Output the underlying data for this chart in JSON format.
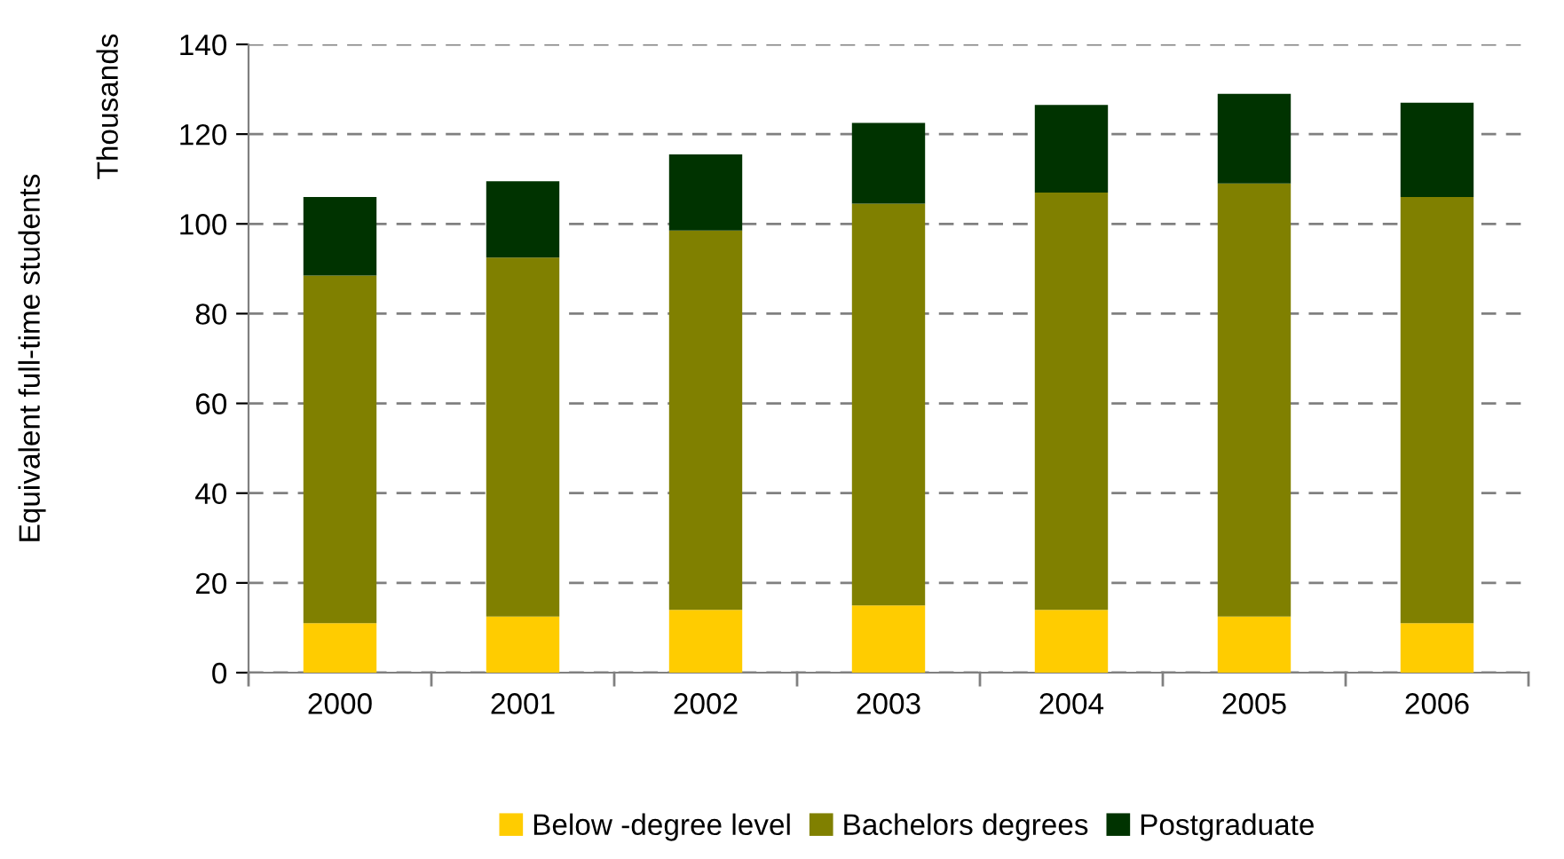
{
  "chart_data": {
    "type": "bar",
    "stacked": true,
    "ylabel": "Equivalent full-time students",
    "y2label": "Thousands",
    "categories": [
      "2000",
      "2001",
      "2002",
      "2003",
      "2004",
      "2005",
      "2006"
    ],
    "series": [
      {
        "name": "Below -degree level",
        "color": "#ffcc00",
        "values": [
          11,
          12.5,
          14,
          15,
          14,
          12.5,
          11
        ]
      },
      {
        "name": "Bachelors degrees",
        "color": "#808000",
        "values": [
          77.5,
          80,
          84.5,
          89.5,
          93,
          96.5,
          95
        ]
      },
      {
        "name": "Postgraduate",
        "color": "#003300",
        "values": [
          17.5,
          17,
          17,
          18,
          19.5,
          20,
          21
        ]
      }
    ],
    "ylim": [
      0,
      140
    ],
    "yticks": [
      0,
      20,
      40,
      60,
      80,
      100,
      120,
      140
    ],
    "grid": "y",
    "legend": "bottom"
  }
}
